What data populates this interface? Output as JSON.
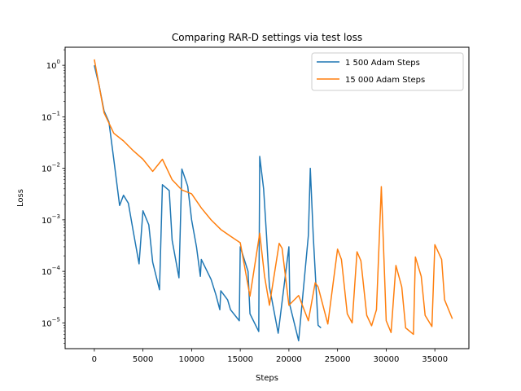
{
  "chart_data": {
    "type": "line",
    "title": "Comparing RAR-D settings via test loss",
    "xlabel": "Steps",
    "ylabel": "Loss",
    "xlim": [
      -3000,
      38500
    ],
    "ylim_log10": [
      -5.5,
      0.35
    ],
    "yscale": "log",
    "grid": false,
    "legend_position": "top-right",
    "x_ticks": [
      0,
      5000,
      10000,
      15000,
      20000,
      25000,
      30000,
      35000
    ],
    "x_tick_labels": [
      "0",
      "5000",
      "10000",
      "15000",
      "20000",
      "25000",
      "30000",
      "35000"
    ],
    "y_ticks_log10": [
      -5,
      -4,
      -3,
      -2,
      -1,
      0
    ],
    "y_tick_labels": [
      {
        "base": "10",
        "exp": "−5"
      },
      {
        "base": "10",
        "exp": "−4"
      },
      {
        "base": "10",
        "exp": "−3"
      },
      {
        "base": "10",
        "exp": "−2"
      },
      {
        "base": "10",
        "exp": "−1"
      },
      {
        "base": "10",
        "exp": "0"
      }
    ],
    "series": [
      {
        "name": "1 500 Adam Steps",
        "color": "#1f77b4",
        "points": [
          [
            0,
            1.0
          ],
          [
            500,
            0.4
          ],
          [
            1000,
            0.13
          ],
          [
            1500,
            0.08
          ],
          [
            2000,
            0.015
          ],
          [
            2600,
            0.0019
          ],
          [
            3000,
            0.003
          ],
          [
            3500,
            0.0021
          ],
          [
            4000,
            0.0006
          ],
          [
            4600,
            0.00014
          ],
          [
            5000,
            0.0015
          ],
          [
            5600,
            0.0008
          ],
          [
            6000,
            0.00015
          ],
          [
            6700,
            4.4e-05
          ],
          [
            7000,
            0.0048
          ],
          [
            7700,
            0.0037
          ],
          [
            8000,
            0.0004
          ],
          [
            8700,
            7.5e-05
          ],
          [
            9000,
            0.0097
          ],
          [
            9600,
            0.0045
          ],
          [
            10000,
            0.001
          ],
          [
            10500,
            0.0003
          ],
          [
            10900,
            8e-05
          ],
          [
            11000,
            0.00017
          ],
          [
            12000,
            7e-05
          ],
          [
            12500,
            3.5e-05
          ],
          [
            12900,
            1.8e-05
          ],
          [
            13000,
            4.2e-05
          ],
          [
            13700,
            2.8e-05
          ],
          [
            14000,
            1.8e-05
          ],
          [
            14900,
            1.1e-05
          ],
          [
            15000,
            0.0003
          ],
          [
            15800,
            0.0001
          ],
          [
            16000,
            1.5e-05
          ],
          [
            16900,
            6.8e-06
          ],
          [
            17000,
            0.017
          ],
          [
            17400,
            0.004
          ],
          [
            17700,
            0.0005
          ],
          [
            18000,
            5e-05
          ],
          [
            18900,
            6.3e-06
          ],
          [
            20000,
            0.0003
          ],
          [
            20100,
            2.2e-05
          ],
          [
            21000,
            4.5e-06
          ],
          [
            22000,
            0.0005
          ],
          [
            22200,
            0.01
          ],
          [
            22500,
            0.0005
          ],
          [
            23000,
            9e-06
          ],
          [
            23300,
            8e-06
          ]
        ]
      },
      {
        "name": "15 000 Adam Steps",
        "color": "#ff7f0e",
        "points": [
          [
            0,
            1.3
          ],
          [
            1000,
            0.12
          ],
          [
            2000,
            0.048
          ],
          [
            3000,
            0.034
          ],
          [
            4000,
            0.022
          ],
          [
            5000,
            0.015
          ],
          [
            6000,
            0.0087
          ],
          [
            7000,
            0.015
          ],
          [
            8000,
            0.006
          ],
          [
            9000,
            0.0038
          ],
          [
            10000,
            0.0032
          ],
          [
            11000,
            0.0017
          ],
          [
            12000,
            0.001
          ],
          [
            13000,
            0.00065
          ],
          [
            14000,
            0.00048
          ],
          [
            15000,
            0.00036
          ],
          [
            16000,
            3.3e-05
          ],
          [
            17000,
            0.00055
          ],
          [
            17500,
            8e-05
          ],
          [
            18000,
            2.2e-05
          ],
          [
            19000,
            0.00035
          ],
          [
            19300,
            0.00028
          ],
          [
            20000,
            2.2e-05
          ],
          [
            21000,
            3.4e-05
          ],
          [
            22000,
            1.1e-05
          ],
          [
            22700,
            6e-05
          ],
          [
            23000,
            5e-05
          ],
          [
            24000,
            9.5e-06
          ],
          [
            25000,
            0.00027
          ],
          [
            25400,
            0.00017
          ],
          [
            26000,
            1.5e-05
          ],
          [
            26500,
            1e-05
          ],
          [
            27000,
            0.00024
          ],
          [
            27400,
            0.00016
          ],
          [
            28000,
            1.4e-05
          ],
          [
            28500,
            8.8e-06
          ],
          [
            29000,
            1.8e-05
          ],
          [
            29500,
            0.0044
          ],
          [
            30000,
            1.1e-05
          ],
          [
            30500,
            6.5e-06
          ],
          [
            31000,
            0.00013
          ],
          [
            31600,
            5e-05
          ],
          [
            32000,
            8e-06
          ],
          [
            32800,
            6e-06
          ],
          [
            33000,
            0.00019
          ],
          [
            33600,
            8e-05
          ],
          [
            34000,
            1.4e-05
          ],
          [
            34700,
            8.5e-06
          ],
          [
            35000,
            0.00033
          ],
          [
            35700,
            0.00017
          ],
          [
            36000,
            2.8e-05
          ],
          [
            36800,
            1.2e-05
          ]
        ]
      }
    ]
  }
}
